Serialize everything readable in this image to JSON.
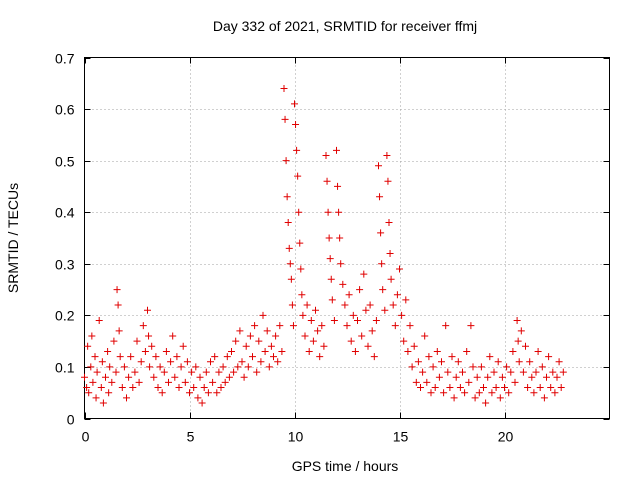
{
  "chart_data": {
    "type": "scatter",
    "title": "Day 332 of 2021, SRMTID for receiver ffmj",
    "xlabel": "GPS time / hours",
    "ylabel": "SRMTID / TECUs",
    "xlim": [
      0,
      25
    ],
    "ylim": [
      0,
      0.7
    ],
    "xticks": [
      0,
      5,
      10,
      15,
      20
    ],
    "yticks": [
      0,
      0.1,
      0.2,
      0.3,
      0.4,
      0.5,
      0.6,
      0.7
    ],
    "xtick_labels": [
      "0",
      "5",
      "10",
      "15",
      "20"
    ],
    "ytick_labels": [
      "0",
      "0.1",
      "0.2",
      "0.3",
      "0.4",
      "0.5",
      "0.6",
      "0.7"
    ],
    "grid": true,
    "marker": "+",
    "color": "#e00000",
    "series": [
      {
        "name": "SRMTID",
        "points": [
          [
            0.0,
            0.08
          ],
          [
            0.1,
            0.06
          ],
          [
            0.15,
            0.14
          ],
          [
            0.2,
            0.05
          ],
          [
            0.3,
            0.1
          ],
          [
            0.35,
            0.16
          ],
          [
            0.4,
            0.07
          ],
          [
            0.5,
            0.12
          ],
          [
            0.55,
            0.04
          ],
          [
            0.6,
            0.09
          ],
          [
            0.7,
            0.19
          ],
          [
            0.8,
            0.06
          ],
          [
            0.85,
            0.11
          ],
          [
            0.9,
            0.03
          ],
          [
            1.0,
            0.08
          ],
          [
            1.1,
            0.13
          ],
          [
            1.15,
            0.05
          ],
          [
            1.2,
            0.1
          ],
          [
            1.3,
            0.07
          ],
          [
            1.4,
            0.15
          ],
          [
            1.5,
            0.09
          ],
          [
            1.55,
            0.25
          ],
          [
            1.6,
            0.22
          ],
          [
            1.65,
            0.17
          ],
          [
            1.7,
            0.12
          ],
          [
            1.8,
            0.06
          ],
          [
            1.9,
            0.1
          ],
          [
            2.0,
            0.04
          ],
          [
            2.1,
            0.08
          ],
          [
            2.2,
            0.12
          ],
          [
            2.3,
            0.06
          ],
          [
            2.4,
            0.09
          ],
          [
            2.5,
            0.15
          ],
          [
            2.6,
            0.07
          ],
          [
            2.7,
            0.11
          ],
          [
            2.8,
            0.18
          ],
          [
            2.9,
            0.13
          ],
          [
            3.0,
            0.21
          ],
          [
            3.05,
            0.16
          ],
          [
            3.1,
            0.1
          ],
          [
            3.2,
            0.14
          ],
          [
            3.3,
            0.08
          ],
          [
            3.4,
            0.12
          ],
          [
            3.5,
            0.06
          ],
          [
            3.6,
            0.1
          ],
          [
            3.7,
            0.05
          ],
          [
            3.8,
            0.09
          ],
          [
            3.9,
            0.13
          ],
          [
            4.0,
            0.07
          ],
          [
            4.1,
            0.11
          ],
          [
            4.2,
            0.16
          ],
          [
            4.3,
            0.08
          ],
          [
            4.4,
            0.12
          ],
          [
            4.5,
            0.06
          ],
          [
            4.6,
            0.1
          ],
          [
            4.7,
            0.14
          ],
          [
            4.8,
            0.07
          ],
          [
            4.9,
            0.11
          ],
          [
            5.0,
            0.05
          ],
          [
            5.1,
            0.09
          ],
          [
            5.2,
            0.06
          ],
          [
            5.3,
            0.1
          ],
          [
            5.4,
            0.04
          ],
          [
            5.5,
            0.08
          ],
          [
            5.6,
            0.03
          ],
          [
            5.7,
            0.06
          ],
          [
            5.8,
            0.09
          ],
          [
            5.9,
            0.05
          ],
          [
            6.0,
            0.11
          ],
          [
            6.1,
            0.07
          ],
          [
            6.2,
            0.12
          ],
          [
            6.3,
            0.05
          ],
          [
            6.4,
            0.09
          ],
          [
            6.5,
            0.06
          ],
          [
            6.6,
            0.1
          ],
          [
            6.7,
            0.07
          ],
          [
            6.8,
            0.12
          ],
          [
            6.9,
            0.08
          ],
          [
            7.0,
            0.13
          ],
          [
            7.1,
            0.09
          ],
          [
            7.2,
            0.15
          ],
          [
            7.3,
            0.1
          ],
          [
            7.4,
            0.17
          ],
          [
            7.5,
            0.11
          ],
          [
            7.6,
            0.08
          ],
          [
            7.7,
            0.14
          ],
          [
            7.8,
            0.1
          ],
          [
            7.9,
            0.16
          ],
          [
            8.0,
            0.12
          ],
          [
            8.1,
            0.18
          ],
          [
            8.2,
            0.09
          ],
          [
            8.3,
            0.15
          ],
          [
            8.4,
            0.11
          ],
          [
            8.5,
            0.2
          ],
          [
            8.6,
            0.13
          ],
          [
            8.7,
            0.17
          ],
          [
            8.8,
            0.1
          ],
          [
            8.9,
            0.14
          ],
          [
            9.0,
            0.12
          ],
          [
            9.1,
            0.16
          ],
          [
            9.2,
            0.11
          ],
          [
            9.3,
            0.18
          ],
          [
            9.4,
            0.13
          ],
          [
            9.5,
            0.64
          ],
          [
            9.55,
            0.58
          ],
          [
            9.6,
            0.5
          ],
          [
            9.65,
            0.43
          ],
          [
            9.7,
            0.38
          ],
          [
            9.75,
            0.33
          ],
          [
            9.8,
            0.3
          ],
          [
            9.85,
            0.27
          ],
          [
            9.9,
            0.22
          ],
          [
            9.95,
            0.18
          ],
          [
            10.0,
            0.61
          ],
          [
            10.05,
            0.57
          ],
          [
            10.1,
            0.52
          ],
          [
            10.15,
            0.47
          ],
          [
            10.2,
            0.4
          ],
          [
            10.25,
            0.34
          ],
          [
            10.3,
            0.29
          ],
          [
            10.35,
            0.24
          ],
          [
            10.4,
            0.2
          ],
          [
            10.5,
            0.16
          ],
          [
            10.6,
            0.22
          ],
          [
            10.7,
            0.13
          ],
          [
            10.8,
            0.19
          ],
          [
            10.9,
            0.15
          ],
          [
            11.0,
            0.21
          ],
          [
            11.1,
            0.17
          ],
          [
            11.2,
            0.12
          ],
          [
            11.3,
            0.18
          ],
          [
            11.4,
            0.14
          ],
          [
            11.5,
            0.51
          ],
          [
            11.55,
            0.46
          ],
          [
            11.6,
            0.4
          ],
          [
            11.65,
            0.35
          ],
          [
            11.7,
            0.31
          ],
          [
            11.75,
            0.27
          ],
          [
            11.8,
            0.23
          ],
          [
            11.9,
            0.19
          ],
          [
            12.0,
            0.52
          ],
          [
            12.05,
            0.45
          ],
          [
            12.1,
            0.4
          ],
          [
            12.15,
            0.35
          ],
          [
            12.2,
            0.3
          ],
          [
            12.3,
            0.26
          ],
          [
            12.4,
            0.22
          ],
          [
            12.5,
            0.18
          ],
          [
            12.6,
            0.24
          ],
          [
            12.7,
            0.15
          ],
          [
            12.8,
            0.2
          ],
          [
            12.9,
            0.13
          ],
          [
            13.0,
            0.19
          ],
          [
            13.1,
            0.25
          ],
          [
            13.2,
            0.16
          ],
          [
            13.3,
            0.28
          ],
          [
            13.4,
            0.21
          ],
          [
            13.5,
            0.14
          ],
          [
            13.6,
            0.22
          ],
          [
            13.7,
            0.17
          ],
          [
            13.8,
            0.12
          ],
          [
            13.9,
            0.19
          ],
          [
            14.0,
            0.49
          ],
          [
            14.05,
            0.43
          ],
          [
            14.1,
            0.36
          ],
          [
            14.15,
            0.3
          ],
          [
            14.2,
            0.25
          ],
          [
            14.3,
            0.21
          ],
          [
            14.4,
            0.51
          ],
          [
            14.45,
            0.46
          ],
          [
            14.5,
            0.38
          ],
          [
            14.55,
            0.32
          ],
          [
            14.6,
            0.27
          ],
          [
            14.7,
            0.22
          ],
          [
            14.8,
            0.18
          ],
          [
            14.9,
            0.24
          ],
          [
            15.0,
            0.29
          ],
          [
            15.1,
            0.2
          ],
          [
            15.2,
            0.15
          ],
          [
            15.3,
            0.23
          ],
          [
            15.4,
            0.13
          ],
          [
            15.5,
            0.18
          ],
          [
            15.6,
            0.1
          ],
          [
            15.7,
            0.14
          ],
          [
            15.8,
            0.07
          ],
          [
            15.9,
            0.11
          ],
          [
            16.0,
            0.06
          ],
          [
            16.1,
            0.09
          ],
          [
            16.2,
            0.16
          ],
          [
            16.3,
            0.07
          ],
          [
            16.4,
            0.12
          ],
          [
            16.5,
            0.05
          ],
          [
            16.6,
            0.1
          ],
          [
            16.7,
            0.06
          ],
          [
            16.8,
            0.13
          ],
          [
            16.9,
            0.08
          ],
          [
            17.0,
            0.11
          ],
          [
            17.1,
            0.05
          ],
          [
            17.2,
            0.18
          ],
          [
            17.3,
            0.09
          ],
          [
            17.4,
            0.06
          ],
          [
            17.5,
            0.12
          ],
          [
            17.6,
            0.04
          ],
          [
            17.7,
            0.08
          ],
          [
            17.8,
            0.11
          ],
          [
            17.9,
            0.06
          ],
          [
            18.0,
            0.09
          ],
          [
            18.1,
            0.05
          ],
          [
            18.2,
            0.13
          ],
          [
            18.3,
            0.07
          ],
          [
            18.4,
            0.18
          ],
          [
            18.5,
            0.1
          ],
          [
            18.6,
            0.04
          ],
          [
            18.7,
            0.08
          ],
          [
            18.8,
            0.05
          ],
          [
            18.9,
            0.1
          ],
          [
            19.0,
            0.06
          ],
          [
            19.1,
            0.03
          ],
          [
            19.2,
            0.08
          ],
          [
            19.3,
            0.12
          ],
          [
            19.4,
            0.05
          ],
          [
            19.5,
            0.09
          ],
          [
            19.6,
            0.06
          ],
          [
            19.7,
            0.11
          ],
          [
            19.8,
            0.04
          ],
          [
            19.9,
            0.08
          ],
          [
            20.0,
            0.06
          ],
          [
            20.1,
            0.1
          ],
          [
            20.2,
            0.05
          ],
          [
            20.3,
            0.09
          ],
          [
            20.4,
            0.13
          ],
          [
            20.5,
            0.07
          ],
          [
            20.6,
            0.19
          ],
          [
            20.65,
            0.15
          ],
          [
            20.7,
            0.11
          ],
          [
            20.8,
            0.17
          ],
          [
            20.9,
            0.09
          ],
          [
            21.0,
            0.14
          ],
          [
            21.1,
            0.06
          ],
          [
            21.2,
            0.11
          ],
          [
            21.3,
            0.08
          ],
          [
            21.4,
            0.05
          ],
          [
            21.5,
            0.09
          ],
          [
            21.6,
            0.13
          ],
          [
            21.7,
            0.06
          ],
          [
            21.8,
            0.1
          ],
          [
            21.9,
            0.04
          ],
          [
            22.0,
            0.08
          ],
          [
            22.1,
            0.12
          ],
          [
            22.2,
            0.06
          ],
          [
            22.3,
            0.09
          ],
          [
            22.4,
            0.05
          ],
          [
            22.5,
            0.08
          ],
          [
            22.6,
            0.11
          ],
          [
            22.7,
            0.06
          ],
          [
            22.8,
            0.09
          ]
        ]
      }
    ]
  }
}
